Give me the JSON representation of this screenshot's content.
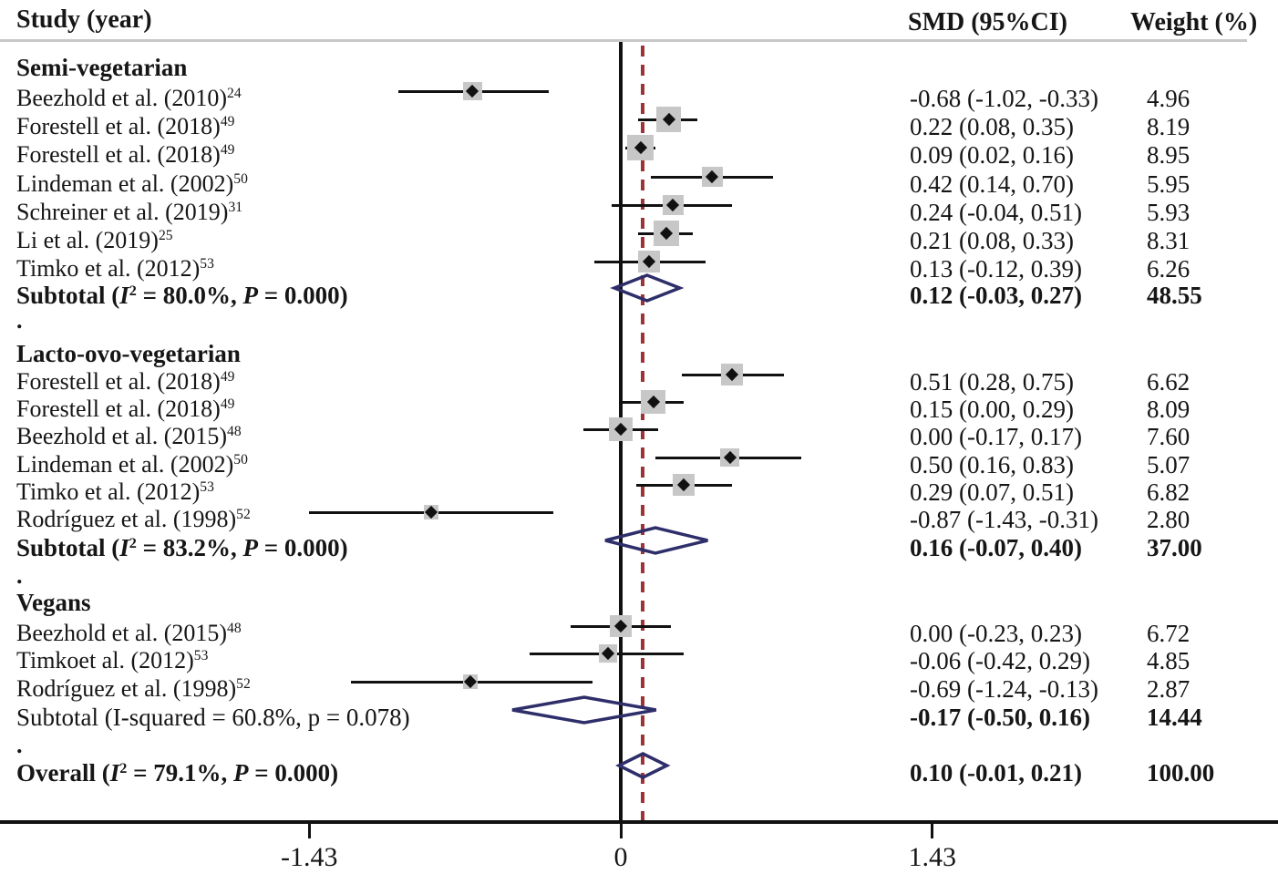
{
  "header": {
    "study_col": "Study (year)",
    "smd_col": "SMD (95%CI)",
    "weight_col": "Weight (%)"
  },
  "colors": {
    "text": "#161616",
    "ci_line": "#111111",
    "weight_box": "#c7c7c7",
    "point_marker": "#111111",
    "pooled_diamond": "#2e2e6a",
    "null_line": "#111111",
    "overall_dashed_line": "#9d3336",
    "header_rule": "#c8c8c8",
    "axis": "#111111"
  },
  "chart_data": {
    "type": "forest",
    "x_axis": {
      "tick_labels": [
        "-1.43",
        "0",
        "1.43"
      ],
      "tick_values": [
        -1.43,
        0,
        1.43
      ],
      "null_line_value": 0,
      "overall_line_value": 0.1,
      "xlim": [
        -2.85,
        3.0
      ]
    },
    "groups": [
      {
        "name": "Semi-vegetarian",
        "studies": [
          {
            "label_parts": [
              {
                "t": "Beezhold et al. (2010)"
              },
              {
                "t": "24",
                "sup": true
              }
            ],
            "smd": -0.68,
            "lo": -1.02,
            "hi": -0.33,
            "smd_text": "-0.68 (-1.02, -0.33)",
            "weight_text": "4.96",
            "weight": 4.96
          },
          {
            "label_parts": [
              {
                "t": "Forestell et al. (2018)"
              },
              {
                "t": "49",
                "sup": true
              }
            ],
            "smd": 0.22,
            "lo": 0.08,
            "hi": 0.35,
            "smd_text": "0.22 (0.08, 0.35)",
            "weight_text": "8.19",
            "weight": 8.19
          },
          {
            "label_parts": [
              {
                "t": "Forestell et al. (2018)"
              },
              {
                "t": "49",
                "sup": true
              }
            ],
            "smd": 0.09,
            "lo": 0.02,
            "hi": 0.16,
            "smd_text": "0.09 (0.02, 0.16)",
            "weight_text": "8.95",
            "weight": 8.95
          },
          {
            "label_parts": [
              {
                "t": "Lindeman  et al.  (2002)"
              },
              {
                "t": "50",
                "sup": true
              }
            ],
            "smd": 0.42,
            "lo": 0.14,
            "hi": 0.7,
            "smd_text": "0.42 (0.14, 0.70)",
            "weight_text": "5.95",
            "weight": 5.95
          },
          {
            "label_parts": [
              {
                "t": "Schreiner  et al. (2019)"
              },
              {
                "t": "31",
                "sup": true
              }
            ],
            "smd": 0.24,
            "lo": -0.04,
            "hi": 0.51,
            "smd_text": "0.24 (-0.04, 0.51)",
            "weight_text": "5.93",
            "weight": 5.93
          },
          {
            "label_parts": [
              {
                "t": "Li et al. (2019)"
              },
              {
                "t": "25",
                "sup": true
              }
            ],
            "smd": 0.21,
            "lo": 0.08,
            "hi": 0.33,
            "smd_text": "0.21 (0.08, 0.33)",
            "weight_text": "8.31",
            "weight": 8.31
          },
          {
            "label_parts": [
              {
                "t": "Timko et al. (2012)"
              },
              {
                "t": "53",
                "sup": true
              }
            ],
            "smd": 0.13,
            "lo": -0.12,
            "hi": 0.39,
            "smd_text": "0.13 (-0.12, 0.39)",
            "weight_text": "6.26",
            "weight": 6.26
          }
        ],
        "subtotal": {
          "label_parts": [
            {
              "t": "Subtotal  ("
            },
            {
              "t": "I",
              "i": true
            },
            {
              "t": "2",
              "sup": true
            },
            {
              "t": " = 80.0%, "
            },
            {
              "t": "P",
              "i": true
            },
            {
              "t": " = 0.000)"
            }
          ],
          "smd": 0.12,
          "lo": -0.03,
          "hi": 0.27,
          "smd_text": "0.12 (-0.03, 0.27)",
          "weight_text": "48.55",
          "label_bold": true,
          "value_bold": true
        }
      },
      {
        "name": "Lacto-ovo-vegetarian",
        "studies": [
          {
            "label_parts": [
              {
                "t": "Forestell et al. (2018)"
              },
              {
                "t": "49",
                "sup": true
              }
            ],
            "smd": 0.51,
            "lo": 0.28,
            "hi": 0.75,
            "smd_text": "0.51 (0.28, 0.75)",
            "weight_text": "6.62",
            "weight": 6.62
          },
          {
            "label_parts": [
              {
                "t": "Forestell et al. (2018)"
              },
              {
                "t": "49",
                "sup": true
              }
            ],
            "smd": 0.15,
            "lo": 0.0,
            "hi": 0.29,
            "smd_text": "0.15 (0.00, 0.29)",
            "weight_text": "8.09",
            "weight": 8.09
          },
          {
            "label_parts": [
              {
                "t": "Beezhold et al. (2015)"
              },
              {
                "t": "48",
                "sup": true
              }
            ],
            "smd": 0.0,
            "lo": -0.17,
            "hi": 0.17,
            "smd_text": "0.00 (-0.17, 0.17)",
            "weight_text": "7.60",
            "weight": 7.6
          },
          {
            "label_parts": [
              {
                "t": "Lindeman  et al.  (2002)"
              },
              {
                "t": "50",
                "sup": true
              }
            ],
            "smd": 0.5,
            "lo": 0.16,
            "hi": 0.83,
            "smd_text": "0.50 (0.16, 0.83)",
            "weight_text": "5.07",
            "weight": 5.07
          },
          {
            "label_parts": [
              {
                "t": "Timko et al. (2012)"
              },
              {
                "t": "53",
                "sup": true
              }
            ],
            "smd": 0.29,
            "lo": 0.07,
            "hi": 0.51,
            "smd_text": "0.29 (0.07, 0.51)",
            "weight_text": "6.82",
            "weight": 6.82
          },
          {
            "label_parts": [
              {
                "t": "Rodríguez  et al. (1998)"
              },
              {
                "t": "52",
                "sup": true
              }
            ],
            "smd": -0.87,
            "lo": -1.43,
            "hi": -0.31,
            "smd_text": "-0.87 (-1.43, -0.31)",
            "weight_text": "2.80",
            "weight": 2.8
          }
        ],
        "subtotal": {
          "label_parts": [
            {
              "t": "Subtotal  ("
            },
            {
              "t": "I",
              "i": true
            },
            {
              "t": "2",
              "sup": true
            },
            {
              "t": " = 83.2%, "
            },
            {
              "t": "P",
              "i": true
            },
            {
              "t": " = 0.000)"
            }
          ],
          "smd": 0.16,
          "lo": -0.07,
          "hi": 0.4,
          "smd_text": "0.16 (-0.07, 0.40)",
          "weight_text": "37.00",
          "label_bold": true,
          "value_bold": true
        }
      },
      {
        "name": "Vegans",
        "studies": [
          {
            "label_parts": [
              {
                "t": "Beezhold et al. (2015)"
              },
              {
                "t": "48",
                "sup": true
              }
            ],
            "smd": 0.0,
            "lo": -0.23,
            "hi": 0.23,
            "smd_text": "0.00 (-0.23, 0.23)",
            "weight_text": "6.72",
            "weight": 6.72
          },
          {
            "label_parts": [
              {
                "t": "Timkoet al. (2012)"
              },
              {
                "t": "53",
                "sup": true
              }
            ],
            "smd": -0.06,
            "lo": -0.42,
            "hi": 0.29,
            "smd_text": "-0.06 (-0.42, 0.29)",
            "weight_text": "4.85",
            "weight": 4.85
          },
          {
            "label_parts": [
              {
                "t": "Rodríguez et al. (1998)"
              },
              {
                "t": "52",
                "sup": true
              }
            ],
            "smd": -0.69,
            "lo": -1.24,
            "hi": -0.13,
            "smd_text": "-0.69 (-1.24, -0.13)",
            "weight_text": "2.87",
            "weight": 2.87
          }
        ],
        "subtotal": {
          "label_parts": [
            {
              "t": "Subtotal  (I-squared = 60.8%, p = 0.078)"
            }
          ],
          "smd": -0.17,
          "lo": -0.5,
          "hi": 0.16,
          "smd_text": "-0.17 (-0.50, 0.16)",
          "weight_text": "14.44",
          "label_bold": false,
          "value_bold": true
        }
      }
    ],
    "overall": {
      "label_parts": [
        {
          "t": "Overall  ("
        },
        {
          "t": "I",
          "i": true
        },
        {
          "t": "2",
          "sup": true
        },
        {
          "t": " = 79.1%, "
        },
        {
          "t": "P",
          "i": true
        },
        {
          "t": " = 0.000)"
        }
      ],
      "smd": 0.1,
      "lo": -0.01,
      "hi": 0.21,
      "smd_text": "0.10 (-0.01, 0.21)",
      "weight_text": "100.00",
      "label_bold": true,
      "value_bold": true
    },
    "section_separator_glyph": "."
  }
}
